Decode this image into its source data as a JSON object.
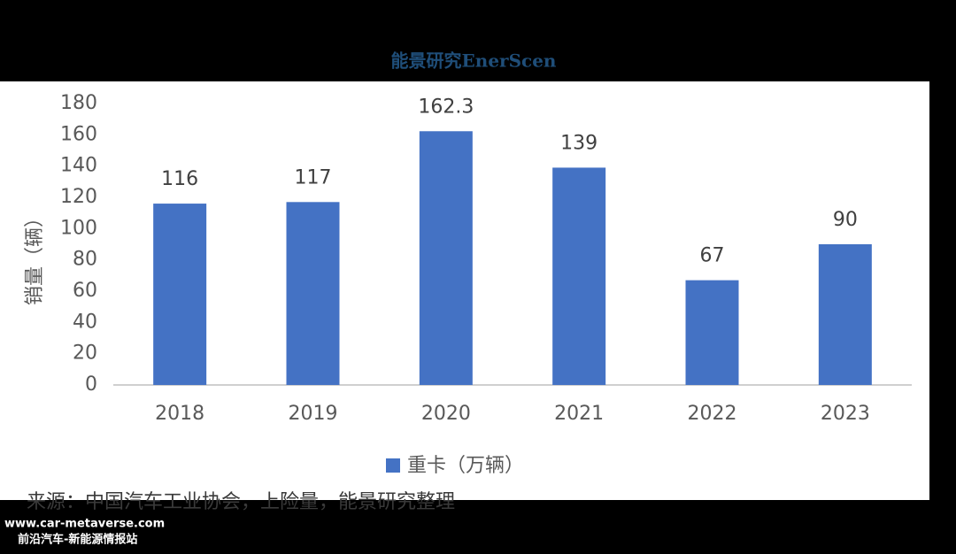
{
  "logo": "能景研究EnerScen",
  "source": "来源：中国汽车工业协会，上险量，能景研究整理",
  "watermark": {
    "url": "www.car-metaverse.com",
    "name": "前沿汽车-新能源情报站"
  },
  "chart_data": {
    "type": "bar",
    "y_label": "销量（辆）",
    "categories": [
      "2018",
      "2019",
      "2020",
      "2021",
      "2022",
      "2023"
    ],
    "series": [
      {
        "name": "重卡（万辆）",
        "color": "#4472c4",
        "values": [
          116,
          117,
          162.3,
          139,
          67,
          90
        ]
      }
    ],
    "ylim": [
      0,
      180
    ],
    "yticks": [
      0,
      20,
      40,
      60,
      80,
      100,
      120,
      140,
      160,
      180
    ],
    "grid": false,
    "legend": "bottom"
  }
}
